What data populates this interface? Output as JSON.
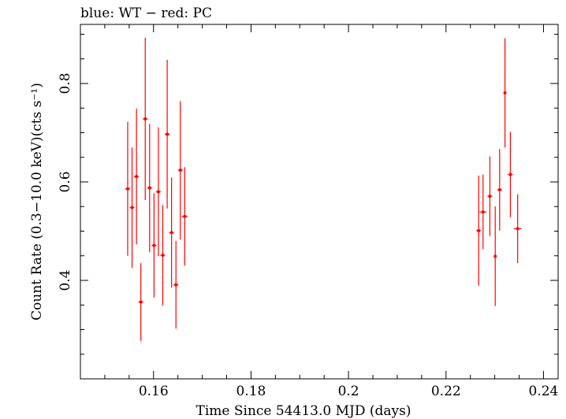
{
  "chart_data": {
    "type": "scatter",
    "title": "blue: WT − red: PC",
    "xlabel": "Time Since 54413.0 MJD (days)",
    "ylabel": "Count Rate (0.3−10.0 keV)(cts s⁻¹)",
    "xlim": [
      0.145,
      0.243
    ],
    "ylim": [
      0.2,
      0.92
    ],
    "xticks": [
      0.16,
      0.18,
      0.2,
      0.22,
      0.24
    ],
    "xtick_labels": [
      "0.16",
      "0.18",
      "0.2",
      "0.22",
      "0.24"
    ],
    "yticks": [
      0.4,
      0.6,
      0.8
    ],
    "ytick_labels": [
      "0.4",
      "0.6",
      "0.8"
    ],
    "grid": false,
    "series": [
      {
        "color": "#ff0000",
        "points": [
          {
            "x": 0.1547,
            "y": 0.586,
            "xerr": 0.0005,
            "ylo": 0.45,
            "yhi": 0.722
          },
          {
            "x": 0.1556,
            "y": 0.548,
            "xerr": 0.0005,
            "ylo": 0.425,
            "yhi": 0.67
          },
          {
            "x": 0.1565,
            "y": 0.611,
            "xerr": 0.0005,
            "ylo": 0.473,
            "yhi": 0.749
          },
          {
            "x": 0.1574,
            "y": 0.356,
            "xerr": 0.0005,
            "ylo": 0.277,
            "yhi": 0.435
          },
          {
            "x": 0.1583,
            "y": 0.728,
            "xerr": 0.0005,
            "ylo": 0.563,
            "yhi": 0.893
          },
          {
            "x": 0.1592,
            "y": 0.588,
            "xerr": 0.0005,
            "ylo": 0.457,
            "yhi": 0.718
          },
          {
            "x": 0.1601,
            "y": 0.471,
            "xerr": 0.0005,
            "ylo": 0.365,
            "yhi": 0.577
          },
          {
            "x": 0.161,
            "y": 0.58,
            "xerr": 0.0005,
            "ylo": 0.449,
            "yhi": 0.711
          },
          {
            "x": 0.1619,
            "y": 0.451,
            "xerr": 0.0005,
            "ylo": 0.349,
            "yhi": 0.553
          },
          {
            "x": 0.1628,
            "y": 0.697,
            "xerr": 0.0005,
            "ylo": 0.546,
            "yhi": 0.848
          },
          {
            "x": 0.1637,
            "y": 0.497,
            "xerr": 0.0005,
            "ylo": 0.385,
            "yhi": 0.609
          },
          {
            "x": 0.1646,
            "y": 0.391,
            "xerr": 0.0005,
            "ylo": 0.302,
            "yhi": 0.48
          },
          {
            "x": 0.1655,
            "y": 0.624,
            "xerr": 0.0005,
            "ylo": 0.483,
            "yhi": 0.764
          },
          {
            "x": 0.1664,
            "y": 0.53,
            "xerr": 0.0006,
            "ylo": 0.43,
            "yhi": 0.63
          },
          {
            "x": 0.2267,
            "y": 0.501,
            "xerr": 0.0005,
            "ylo": 0.389,
            "yhi": 0.613
          },
          {
            "x": 0.2276,
            "y": 0.539,
            "xerr": 0.0007,
            "ylo": 0.463,
            "yhi": 0.615
          },
          {
            "x": 0.229,
            "y": 0.571,
            "xerr": 0.0005,
            "ylo": 0.49,
            "yhi": 0.652
          },
          {
            "x": 0.2301,
            "y": 0.449,
            "xerr": 0.0002,
            "ylo": 0.348,
            "yhi": 0.55
          },
          {
            "x": 0.231,
            "y": 0.584,
            "xerr": 0.0005,
            "ylo": 0.501,
            "yhi": 0.667
          },
          {
            "x": 0.2321,
            "y": 0.781,
            "xerr": 0.0003,
            "ylo": 0.67,
            "yhi": 0.892
          },
          {
            "x": 0.2332,
            "y": 0.615,
            "xerr": 0.0005,
            "ylo": 0.528,
            "yhi": 0.702
          },
          {
            "x": 0.2347,
            "y": 0.505,
            "xerr": 0.0008,
            "ylo": 0.435,
            "yhi": 0.575
          }
        ]
      }
    ]
  }
}
